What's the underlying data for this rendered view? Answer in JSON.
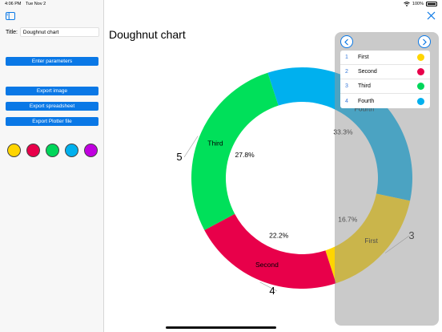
{
  "status_bar": {
    "time": "4:06 PM",
    "date": "Tue Nov 2",
    "battery": "100%"
  },
  "sidebar": {
    "title_label": "Title:",
    "title_value": "Doughnut chart",
    "buttons": {
      "enter_parameters": "Enter parameters",
      "export_image": "Export image",
      "export_spreadsheet": "Export spreadsheet",
      "export_plotter": "Export Plotter file"
    },
    "swatch_colors": [
      "#ffd500",
      "#e8004a",
      "#00d65a",
      "#00b0ee",
      "#c000e0"
    ]
  },
  "main": {
    "title": "Doughnut chart"
  },
  "chart_data": {
    "type": "doughnut",
    "title": "Doughnut chart",
    "slices": [
      {
        "name": "Fourth",
        "percent_label": "33.3%",
        "color": "#00b0ee"
      },
      {
        "name": "First",
        "percent_label": "16.7%",
        "color": "#ffd500",
        "value_label": "3"
      },
      {
        "name": "Second",
        "percent_label": "22.2%",
        "color": "#e8004a",
        "value_label": "4"
      },
      {
        "name": "Third",
        "percent_label": "27.8%",
        "color": "#00e05a",
        "value_label": "5"
      }
    ],
    "percents": [
      33.3,
      16.7,
      22.2,
      27.8
    ]
  },
  "legend": {
    "items": [
      {
        "index": "1",
        "name": "First",
        "color": "#ffd500"
      },
      {
        "index": "2",
        "name": "Second",
        "color": "#e8004a"
      },
      {
        "index": "3",
        "name": "Third",
        "color": "#00d65a"
      },
      {
        "index": "4",
        "name": "Fourth",
        "color": "#00b0ee"
      }
    ]
  },
  "icons": {
    "sidebar_toggle": "sidebar-toggle-icon",
    "close": "close-icon",
    "prev": "chevron-left-icon",
    "next": "chevron-right-icon",
    "wifi": "wifi-icon",
    "battery": "battery-icon"
  }
}
